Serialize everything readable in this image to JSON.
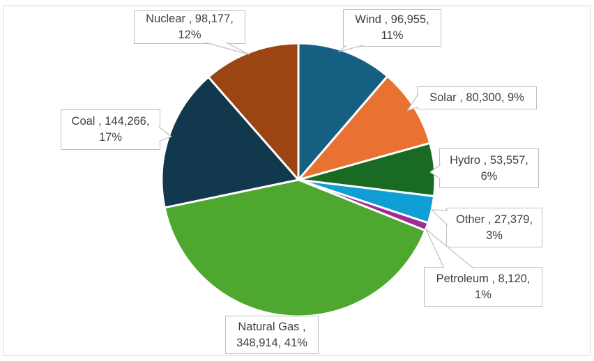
{
  "chart_data": {
    "type": "pie",
    "title": "",
    "legend": "none",
    "direction": "clockwise",
    "start_angle_deg": 0,
    "categories": [
      "Wind",
      "Solar",
      "Hydro",
      "Other",
      "Petroleum",
      "Natural Gas",
      "Coal",
      "Nuclear"
    ],
    "values": [
      96955,
      80300,
      53557,
      27379,
      8120,
      348914,
      144266,
      98177
    ],
    "percent_labels": [
      "11%",
      "9%",
      "6%",
      "3%",
      "1%",
      "41%",
      "17%",
      "12%"
    ],
    "colors": [
      "#156082",
      "#E97132",
      "#196B24",
      "#0F9ED5",
      "#A02B93",
      "#4EA72E",
      "#11384D",
      "#9A4512"
    ],
    "slice_border_color": "#FFFFFF",
    "labels": [
      {
        "name": "wind",
        "lines": [
          "Wind , 96,955,",
          "11%"
        ]
      },
      {
        "name": "solar",
        "lines": [
          "Solar , 80,300, 9%"
        ]
      },
      {
        "name": "hydro",
        "lines": [
          "Hydro , 53,557,",
          "6%"
        ]
      },
      {
        "name": "other",
        "lines": [
          "Other , 27,379,",
          "3%"
        ]
      },
      {
        "name": "petroleum",
        "lines": [
          "Petroleum , 8,120,",
          "1%"
        ]
      },
      {
        "name": "natural-gas",
        "lines": [
          "Natural Gas ,",
          "348,914, 41%"
        ]
      },
      {
        "name": "coal",
        "lines": [
          "Coal , 144,266,",
          "17%"
        ]
      },
      {
        "name": "nuclear",
        "lines": [
          "Nuclear , 98,177,",
          "12%"
        ]
      }
    ]
  },
  "styles": {
    "label_text_color": "#404040",
    "label_border_color": "#BFBFBF",
    "leader_line_color": "#BFBFBF",
    "frame_border_color": "#D9D9D9",
    "background": "#FFFFFF"
  }
}
